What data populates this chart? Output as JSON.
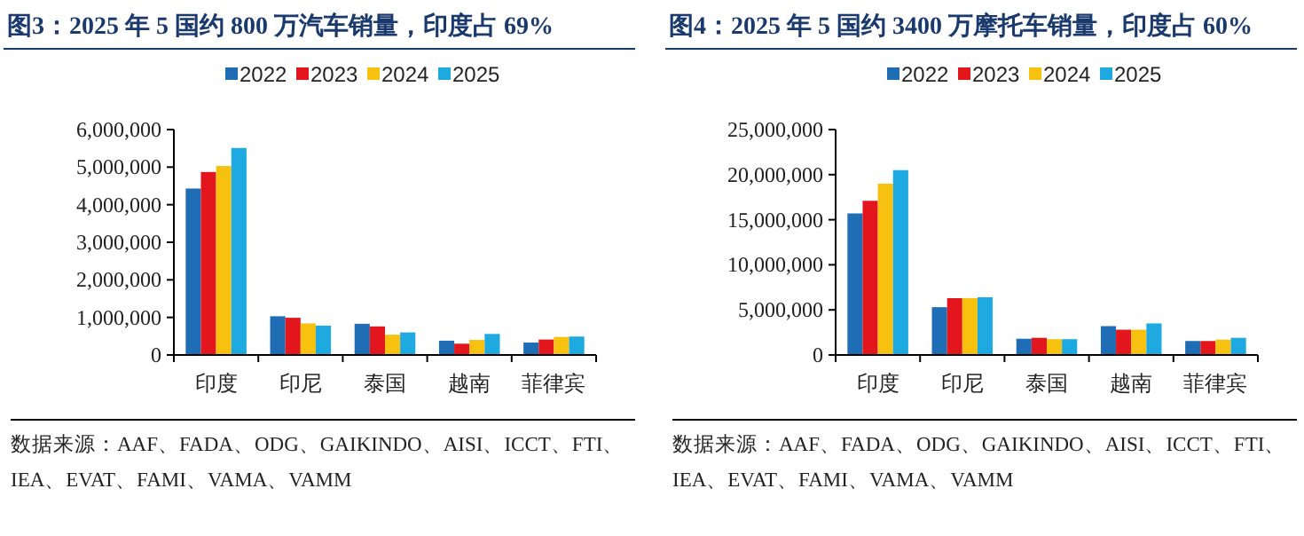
{
  "chart_data": [
    {
      "type": "bar",
      "title": "图3：2025 年 5 国约 800 万汽车销量，印度占 69%",
      "categories": [
        "印度",
        "印尼",
        "泰国",
        "越南",
        "菲律宾"
      ],
      "series": [
        {
          "name": "2022",
          "color": "#1f6db5",
          "values": [
            4430000,
            1030000,
            830000,
            380000,
            330000
          ]
        },
        {
          "name": "2023",
          "color": "#e3161d",
          "values": [
            4870000,
            990000,
            760000,
            300000,
            410000
          ]
        },
        {
          "name": "2024",
          "color": "#f7c10f",
          "values": [
            5030000,
            840000,
            540000,
            400000,
            480000
          ]
        },
        {
          "name": "2025",
          "color": "#1ea9e1",
          "values": [
            5510000,
            780000,
            600000,
            560000,
            490000
          ]
        }
      ],
      "ylim": [
        0,
        6000000
      ],
      "yticks": [
        {
          "value": 0,
          "label": "0"
        },
        {
          "value": 1000000,
          "label": "1,000,000"
        },
        {
          "value": 2000000,
          "label": "2,000,000"
        },
        {
          "value": 3000000,
          "label": "3,000,000"
        },
        {
          "value": 4000000,
          "label": "4,000,000"
        },
        {
          "value": 5000000,
          "label": "5,000,000"
        },
        {
          "value": 6000000,
          "label": "6,000,000"
        }
      ],
      "legend": "top",
      "grid": false,
      "annotations": [
        "数据来源：AAF、FADA、ODG、GAIKINDO、AISI、ICCT、FTI、IEA、EVAT、FAMI、VAMA、VAMM"
      ]
    },
    {
      "type": "bar",
      "title": "图4：2025 年 5 国约 3400 万摩托车销量，印度占 60%",
      "categories": [
        "印度",
        "印尼",
        "泰国",
        "越南",
        "菲律宾"
      ],
      "series": [
        {
          "name": "2022",
          "color": "#1f6db5",
          "values": [
            15700000,
            5300000,
            1800000,
            3200000,
            1550000
          ]
        },
        {
          "name": "2023",
          "color": "#e3161d",
          "values": [
            17100000,
            6300000,
            1900000,
            2800000,
            1550000
          ]
        },
        {
          "name": "2024",
          "color": "#f7c10f",
          "values": [
            19000000,
            6300000,
            1750000,
            2800000,
            1700000
          ]
        },
        {
          "name": "2025",
          "color": "#1ea9e1",
          "values": [
            20500000,
            6400000,
            1750000,
            3500000,
            1900000
          ]
        }
      ],
      "ylim": [
        0,
        25000000
      ],
      "yticks": [
        {
          "value": 0,
          "label": "0"
        },
        {
          "value": 5000000,
          "label": "5,000,000"
        },
        {
          "value": 10000000,
          "label": "10,000,000"
        },
        {
          "value": 15000000,
          "label": "15,000,000"
        },
        {
          "value": 20000000,
          "label": "20,000,000"
        },
        {
          "value": 25000000,
          "label": "25,000,000"
        }
      ],
      "legend": "top",
      "grid": false,
      "annotations": [
        "数据来源：AAF、FADA、ODG、GAIKINDO、AISI、ICCT、FTI、IEA、EVAT、FAMI、VAMA、VAMM"
      ]
    }
  ]
}
